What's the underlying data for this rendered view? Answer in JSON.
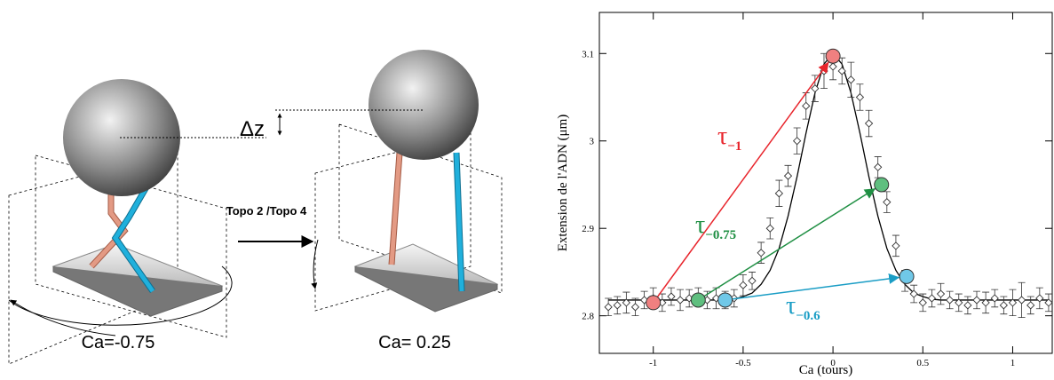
{
  "diagram": {
    "delta_label": "Δz",
    "enzyme_label": "Topo 2 /Topo  4",
    "left_caption": "Ca=-0.75",
    "right_caption": "Ca= 0.25"
  },
  "chart_data": {
    "type": "scatter",
    "xlabel": "Ca (tours)",
    "ylabel": "Extension de l'ADN (μm)",
    "xlim": [
      -1.3,
      1.22
    ],
    "ylim": [
      2.757,
      3.147
    ],
    "xticks": [
      -1,
      -0.5,
      0,
      0.5,
      1
    ],
    "yticks": [
      2.8,
      2.9,
      3,
      3.1
    ],
    "x": [
      -1.25,
      -1.2,
      -1.15,
      -1.1,
      -1.05,
      -1,
      -0.95,
      -0.9,
      -0.85,
      -0.8,
      -0.75,
      -0.7,
      -0.65,
      -0.6,
      -0.55,
      -0.5,
      -0.45,
      -0.4,
      -0.35,
      -0.3,
      -0.25,
      -0.2,
      -0.15,
      -0.1,
      -0.05,
      0,
      0.05,
      0.1,
      0.15,
      0.2,
      0.25,
      0.3,
      0.35,
      0.4,
      0.45,
      0.5,
      0.55,
      0.6,
      0.65,
      0.7,
      0.75,
      0.8,
      0.85,
      0.9,
      0.95,
      1,
      1.05,
      1.1,
      1.15,
      1.2
    ],
    "values": [
      2.81,
      2.812,
      2.815,
      2.81,
      2.818,
      2.82,
      2.815,
      2.822,
      2.818,
      2.82,
      2.822,
      2.818,
      2.82,
      2.818,
      2.82,
      2.835,
      2.84,
      2.872,
      2.9,
      2.94,
      2.96,
      3,
      3.04,
      3.06,
      3.08,
      3.085,
      3.08,
      3.07,
      3.05,
      3.02,
      2.97,
      2.93,
      2.88,
      2.84,
      2.825,
      2.815,
      2.82,
      2.825,
      2.818,
      2.815,
      2.812,
      2.818,
      2.815,
      2.82,
      2.812,
      2.815,
      2.818,
      2.812,
      2.82,
      2.815
    ],
    "errors": [
      0.01,
      0.01,
      0.012,
      0.01,
      0.01,
      0.012,
      0.01,
      0.01,
      0.012,
      0.01,
      0.01,
      0.01,
      0.012,
      0.01,
      0.01,
      0.012,
      0.01,
      0.012,
      0.012,
      0.015,
      0.012,
      0.015,
      0.015,
      0.015,
      0.02,
      0.015,
      0.015,
      0.02,
      0.015,
      0.015,
      0.012,
      0.012,
      0.012,
      0.012,
      0.01,
      0.01,
      0.01,
      0.012,
      0.01,
      0.01,
      0.01,
      0.01,
      0.012,
      0.01,
      0.01,
      0.015,
      0.02,
      0.01,
      0.012,
      0.01
    ],
    "fit": [
      2.818,
      2.818,
      2.818,
      2.818,
      2.818,
      2.818,
      2.818,
      2.818,
      2.818,
      2.818,
      2.818,
      2.818,
      2.818,
      2.818,
      2.819,
      2.822,
      2.826,
      2.836,
      2.852,
      2.877,
      2.914,
      2.959,
      3.009,
      3.055,
      3.088,
      3.1,
      3.088,
      3.055,
      3.009,
      2.959,
      2.914,
      2.877,
      2.852,
      2.836,
      2.826,
      2.822,
      2.819,
      2.818,
      2.818,
      2.818,
      2.818,
      2.818,
      2.818,
      2.818,
      2.818,
      2.818,
      2.818,
      2.818,
      2.818,
      2.818
    ],
    "fit_color": "#000000",
    "point_color": "#333333",
    "transitions": [
      {
        "color": "#e8242b",
        "marker_color": "#f08080",
        "from": [
          -1,
          2.815
        ],
        "to": [
          0,
          3.097
        ],
        "label": "τ",
        "sub": "−1"
      },
      {
        "color": "#1f8f43",
        "marker_color": "#5fbf7f",
        "from": [
          -0.75,
          2.818
        ],
        "to": [
          0.27,
          2.95
        ],
        "label": "τ",
        "sub": "−0.75"
      },
      {
        "color": "#1a9dc5",
        "marker_color": "#70c8e8",
        "from": [
          -0.6,
          2.818
        ],
        "to": [
          0.41,
          2.845
        ],
        "label": "τ",
        "sub": "−0.6"
      }
    ]
  }
}
